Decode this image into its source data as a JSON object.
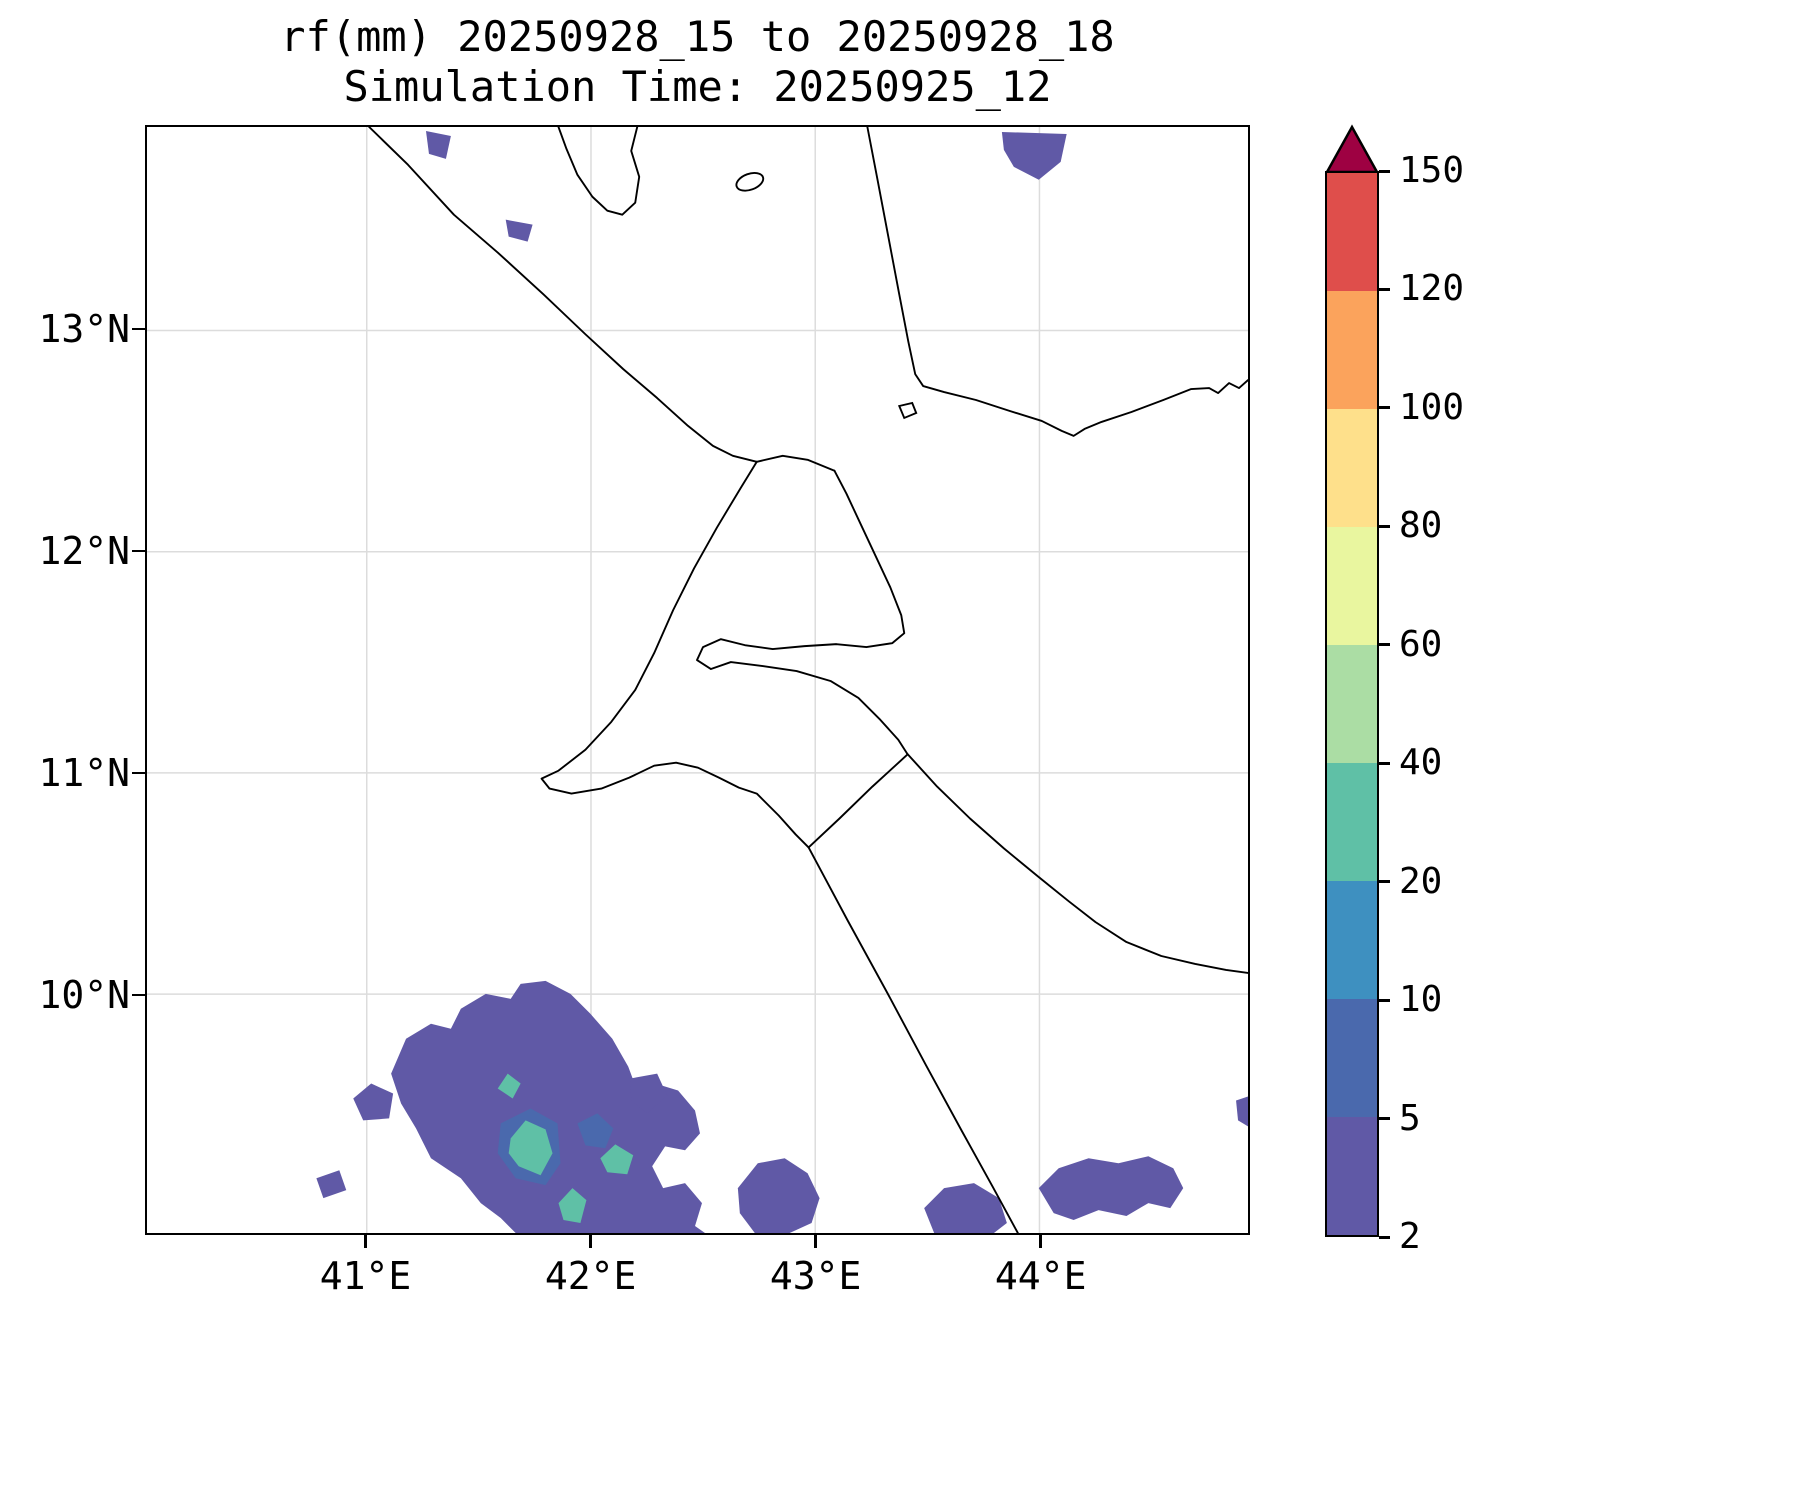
{
  "chart_data": {
    "type": "heatmap",
    "variant": "filled-contour precipitation map with coastlines",
    "title": "rf(mm) 20250928_15 to 20250928_18",
    "subtitle": "Simulation Time: 20250925_12",
    "xlabel": "",
    "ylabel": "",
    "grid": true,
    "x_axis": {
      "tick_labels": [
        "41°E",
        "42°E",
        "43°E",
        "44°E"
      ],
      "tick_values": [
        41,
        42,
        43,
        44
      ],
      "lim": [
        40.02,
        44.93
      ]
    },
    "y_axis": {
      "tick_labels": [
        "10°N",
        "11°N",
        "12°N",
        "13°N"
      ],
      "tick_values": [
        10,
        11,
        12,
        13
      ],
      "lim": [
        8.92,
        13.92
      ]
    },
    "colorbar": {
      "position": "right",
      "extend": "max",
      "levels": [
        2,
        5,
        10,
        20,
        40,
        60,
        80,
        100,
        120,
        150
      ],
      "tick_labels": [
        "2",
        "5",
        "10",
        "20",
        "40",
        "60",
        "80",
        "100",
        "120",
        "150"
      ],
      "colors": [
        "#6059a6",
        "#4a69ad",
        "#3e90c0",
        "#5fc0a6",
        "#abdda4",
        "#e9f69f",
        "#fee08b",
        "#fba35c",
        "#df4e4b"
      ],
      "over_color": "#9e0142"
    },
    "precip_features": [
      {
        "area": "top-right patch near 43.95E, 13.85N",
        "intensity_mm": "2-5"
      },
      {
        "area": "small patch near 41.25E at top edge",
        "intensity_mm": "2-5"
      },
      {
        "area": "small coastal spot near 41.65E, 13.45N",
        "intensity_mm": "2-5"
      },
      {
        "area": "large southwest cluster 41.1-42.6E, below 9.6N",
        "intensity_mm": "2-5 envelope with 5-10 and 20-40 cores"
      },
      {
        "area": "south-central patch 42.65-43.05E at bottom edge",
        "intensity_mm": "2-5"
      },
      {
        "area": "southern patch 43.5-43.9E at bottom edge",
        "intensity_mm": "2-5"
      },
      {
        "area": "southeast cluster 44.0-44.7E near 9.1N",
        "intensity_mm": "2-5"
      },
      {
        "area": "east-edge sliver near 44.9E, 9.55N",
        "intensity_mm": "2-5"
      }
    ]
  }
}
